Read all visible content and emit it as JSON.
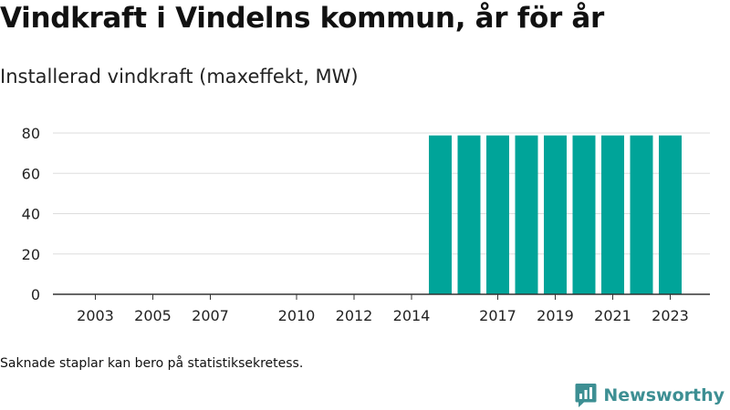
{
  "header": {
    "title": "Vindkraft i Vindelns kommun, år för år",
    "subtitle": "Installerad vindkraft (maxeffekt, MW)"
  },
  "footer": {
    "note": "Saknade staplar kan bero på statistiksekretess.",
    "brand": "Newsworthy",
    "brand_icon": "newsworthy-logo-icon"
  },
  "colors": {
    "bar": "#00a499",
    "grid": "#dddddd",
    "axis": "#333333",
    "brand": "#3d8f93"
  },
  "chart_data": {
    "type": "bar",
    "title": "Installerad vindkraft (maxeffekt, MW)",
    "xlabel": "",
    "ylabel": "",
    "ylim": [
      0,
      80
    ],
    "y_ticks": [
      0,
      20,
      40,
      60,
      80
    ],
    "x_tick_labels": [
      "2003",
      "2005",
      "2007",
      "2010",
      "2012",
      "2014",
      "2017",
      "2019",
      "2021",
      "2023"
    ],
    "grid": true,
    "legend": "none",
    "categories": [
      "2002",
      "2003",
      "2004",
      "2005",
      "2006",
      "2007",
      "2008",
      "2009",
      "2010",
      "2011",
      "2012",
      "2013",
      "2014",
      "2015",
      "2016",
      "2017",
      "2018",
      "2019",
      "2020",
      "2021",
      "2022",
      "2023"
    ],
    "values": [
      null,
      null,
      null,
      null,
      null,
      null,
      null,
      null,
      null,
      null,
      null,
      null,
      null,
      78.8,
      78.8,
      78.8,
      78.8,
      78.8,
      78.8,
      78.8,
      78.8,
      78.8
    ]
  }
}
